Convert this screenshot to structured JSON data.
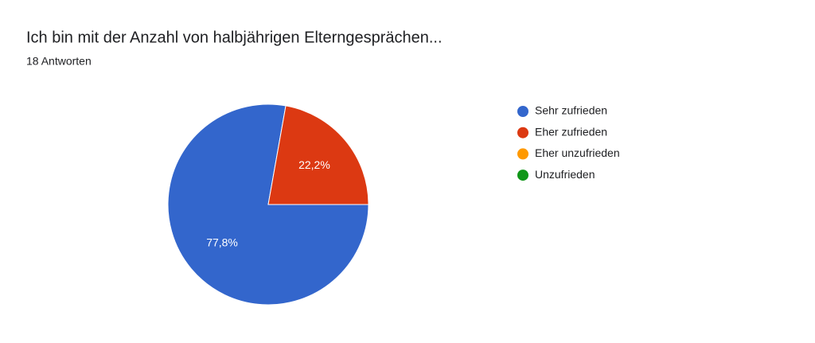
{
  "chart_data": {
    "type": "pie",
    "title": "Ich bin mit der Anzahl von halbjährigen Elterngesprächen...",
    "subtitle": "18 Antworten",
    "categories": [
      "Sehr zufrieden",
      "Eher zufrieden",
      "Eher unzufrieden",
      "Unzufrieden"
    ],
    "values": [
      77.8,
      22.2,
      0,
      0
    ],
    "value_labels": [
      "77,8%",
      "22,2%",
      null,
      null
    ],
    "colors": [
      "#3366cc",
      "#dc3912",
      "#ff9900",
      "#109618"
    ],
    "legend": "right"
  }
}
